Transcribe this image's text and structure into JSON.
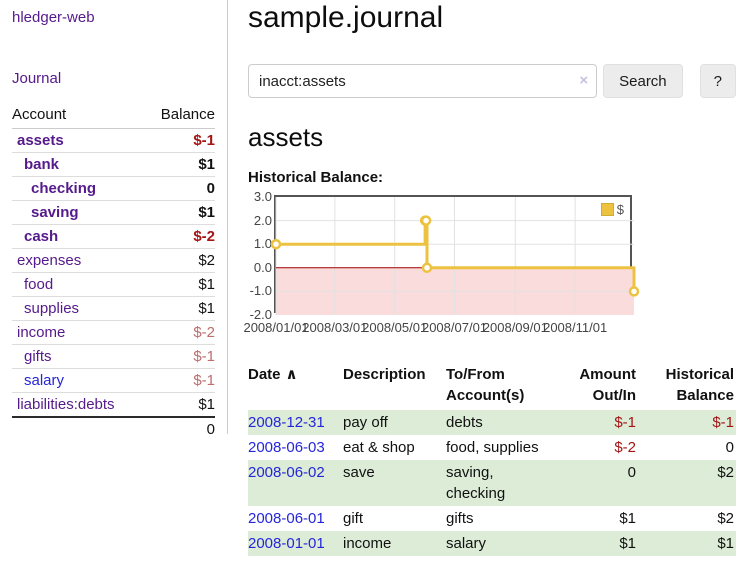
{
  "colors": {
    "link_purple": "#551a8b",
    "link_blue": "#2626d8",
    "negative_strong": "#a31515",
    "negative_muted": "#bc6c6c",
    "row_green": "#dcecd7",
    "chart_line": "#edc240"
  },
  "sidebar": {
    "brand": "hledger-web",
    "journal_link": "Journal",
    "accounts_table": {
      "headers": [
        "Account",
        "Balance"
      ],
      "rows": [
        {
          "name": "assets",
          "indent": 1,
          "bold": true,
          "name_color": "purple",
          "balance": "$-1",
          "balance_color": "dark-red"
        },
        {
          "name": "bank",
          "indent": 2,
          "bold": true,
          "name_color": "purple",
          "balance": "$1",
          "balance_color": "black"
        },
        {
          "name": "checking",
          "indent": 3,
          "bold": true,
          "name_color": "purple",
          "balance": "0",
          "balance_color": "black"
        },
        {
          "name": "saving",
          "indent": 3,
          "bold": true,
          "name_color": "purple",
          "balance": "$1",
          "balance_color": "black"
        },
        {
          "name": "cash",
          "indent": 2,
          "bold": true,
          "name_color": "purple",
          "balance": "$-2",
          "balance_color": "dark-red"
        },
        {
          "name": "expenses",
          "indent": 1,
          "bold": false,
          "name_color": "purple",
          "balance": "$2",
          "balance_color": "black"
        },
        {
          "name": "food",
          "indent": 2,
          "bold": false,
          "name_color": "purple",
          "balance": "$1",
          "balance_color": "black"
        },
        {
          "name": "supplies",
          "indent": 2,
          "bold": false,
          "name_color": "purple",
          "balance": "$1",
          "balance_color": "black"
        },
        {
          "name": "income",
          "indent": 1,
          "bold": false,
          "name_color": "purple",
          "balance": "$-2",
          "balance_color": "rose"
        },
        {
          "name": "gifts",
          "indent": 2,
          "bold": false,
          "name_color": "purple",
          "balance": "$-1",
          "balance_color": "rose"
        },
        {
          "name": "salary",
          "indent": 2,
          "bold": false,
          "name_color": "blue",
          "balance": "$-1",
          "balance_color": "rose"
        },
        {
          "name": "liabilities:debts",
          "indent": 1,
          "bold": false,
          "name_color": "purple",
          "balance": "$1",
          "balance_color": "black"
        }
      ],
      "total": "0"
    }
  },
  "main": {
    "title": "sample.journal",
    "search": {
      "value": "inacct:assets",
      "clear_icon": "×",
      "search_label": "Search",
      "help_label": "?"
    },
    "account_heading": "assets",
    "chart_heading": "Historical Balance:"
  },
  "chart_data": {
    "type": "line",
    "title": "Historical Balance",
    "step": true,
    "series": [
      {
        "name": "$",
        "color": "#edc240",
        "points": [
          [
            "2008-01-01",
            1
          ],
          [
            "2008-06-01",
            2
          ],
          [
            "2008-06-02",
            2
          ],
          [
            "2008-06-03",
            0
          ],
          [
            "2008-12-31",
            -1
          ]
        ]
      }
    ],
    "x_range": [
      "2008-01-01",
      "2008-12-31"
    ],
    "ylim": [
      -2,
      3
    ],
    "x_ticks": [
      "2008/01/01",
      "2008/03/01",
      "2008/05/01",
      "2008/07/01",
      "2008/09/01",
      "2008/11/01"
    ],
    "y_ticks": [
      "3.0",
      "2.0",
      "1.0",
      "0.0",
      "-1.0",
      "-2.0"
    ],
    "legend": {
      "label": "$",
      "position": "top-right"
    },
    "grid": true,
    "negative_region_color": "#fbdcdc",
    "zero_line_color": "#a40000"
  },
  "register": {
    "headers": [
      "Date",
      "Description",
      "To/From Account(s)",
      "Amount Out/In",
      "Historical Balance"
    ],
    "sort_icon": "∧",
    "rows": [
      {
        "date": "2008-12-31",
        "description": "pay off",
        "accounts": "debts",
        "amount": "$-1",
        "amount_neg": true,
        "balance": "$-1",
        "balance_neg": true,
        "green": true
      },
      {
        "date": "2008-06-03",
        "description": "eat & shop",
        "accounts": "food, supplies",
        "amount": "$-2",
        "amount_neg": true,
        "balance": "0",
        "balance_neg": false,
        "green": false
      },
      {
        "date": "2008-06-02",
        "description": "save",
        "accounts": "saving, checking",
        "amount": "0",
        "amount_neg": false,
        "balance": "$2",
        "balance_neg": false,
        "green": true
      },
      {
        "date": "2008-06-01",
        "description": "gift",
        "accounts": "gifts",
        "amount": "$1",
        "amount_neg": false,
        "balance": "$2",
        "balance_neg": false,
        "green": false
      },
      {
        "date": "2008-01-01",
        "description": "income",
        "accounts": "salary",
        "amount": "$1",
        "amount_neg": false,
        "balance": "$1",
        "balance_neg": false,
        "green": true
      }
    ]
  }
}
